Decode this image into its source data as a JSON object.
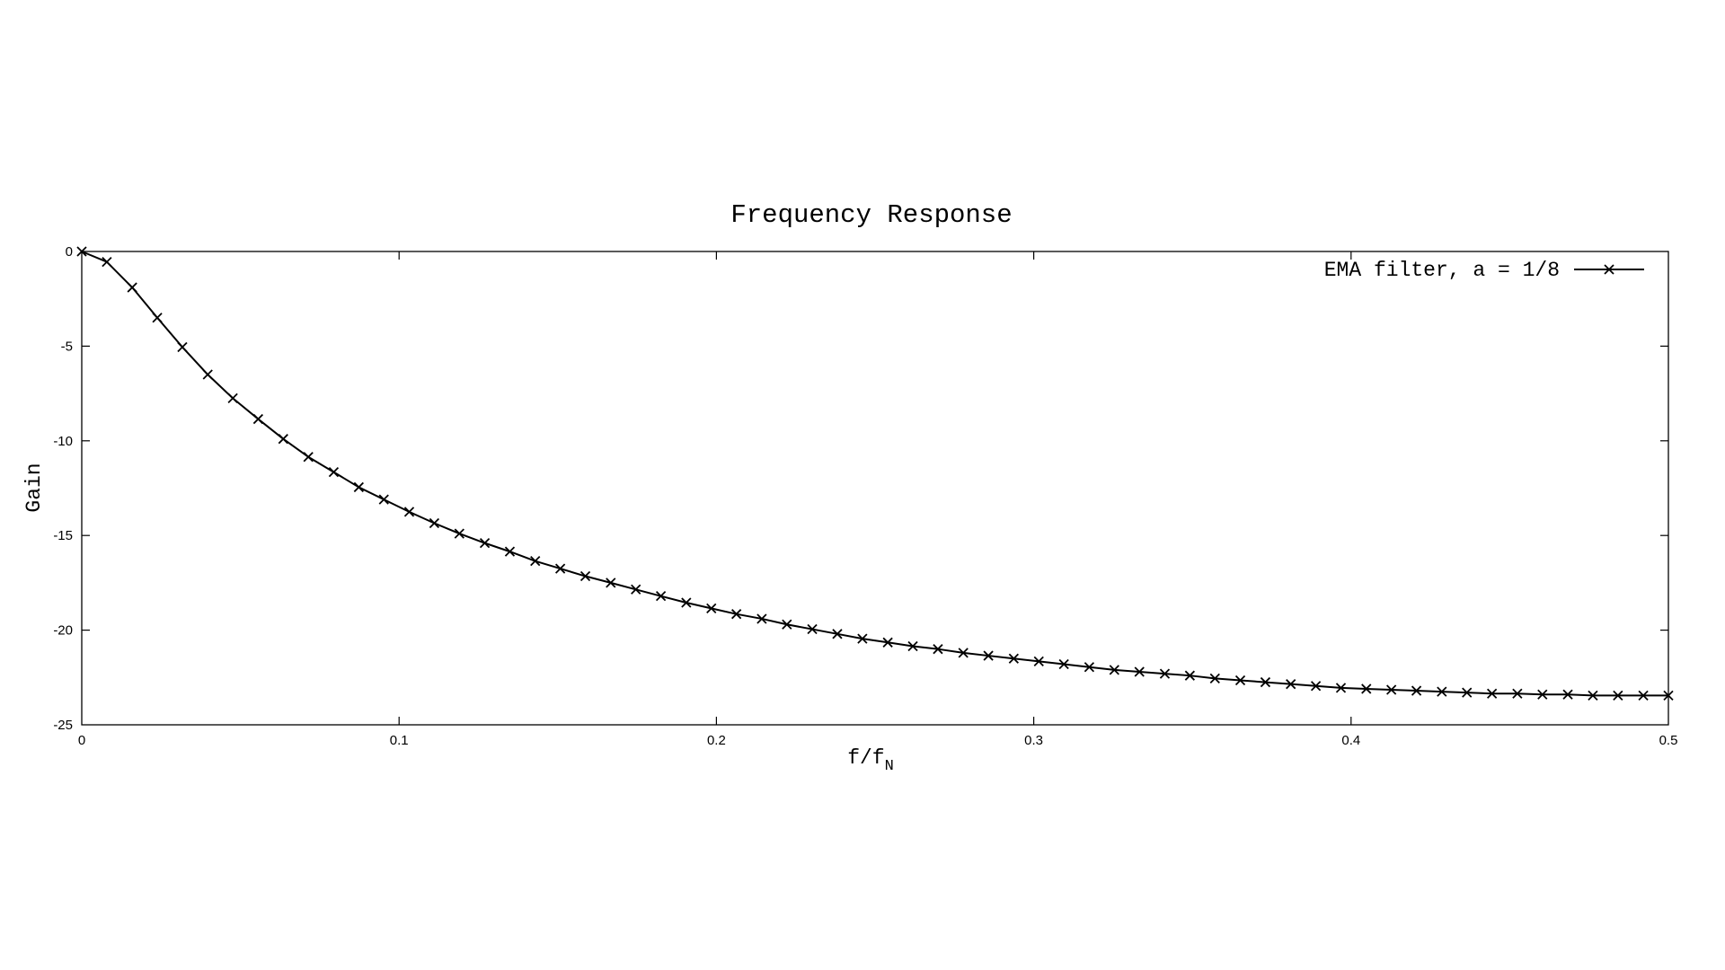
{
  "chart_data": {
    "type": "line",
    "title": "Frequency Response",
    "xlabel_main": "f/f",
    "xlabel_sub": "N",
    "ylabel": "Gain",
    "xlim": [
      0,
      0.5
    ],
    "ylim": [
      -25,
      0
    ],
    "xticks": [
      0,
      0.1,
      0.2,
      0.3,
      0.4,
      0.5
    ],
    "xtick_labels": [
      "0",
      "0.1",
      "0.2",
      "0.3",
      "0.4",
      "0.5"
    ],
    "yticks": [
      0,
      -5,
      -10,
      -15,
      -20,
      -25
    ],
    "ytick_labels": [
      "0",
      "-5",
      "-10",
      "-15",
      "-20",
      "-25"
    ],
    "grid": false,
    "legend_position": "top-right",
    "series": [
      {
        "name": "EMA filter, a = 1/8",
        "marker": "x",
        "color": "#000000",
        "x": [
          0,
          0.0079,
          0.0159,
          0.0238,
          0.0317,
          0.0397,
          0.0476,
          0.0556,
          0.0635,
          0.0714,
          0.0794,
          0.0873,
          0.0952,
          0.1032,
          0.1111,
          0.119,
          0.127,
          0.1349,
          0.1429,
          0.1508,
          0.1587,
          0.1667,
          0.1746,
          0.1825,
          0.1905,
          0.1984,
          0.2063,
          0.2143,
          0.2222,
          0.2302,
          0.2381,
          0.246,
          0.254,
          0.2619,
          0.2698,
          0.2778,
          0.2857,
          0.2937,
          0.3016,
          0.3095,
          0.3175,
          0.3254,
          0.3333,
          0.3413,
          0.3492,
          0.3571,
          0.3651,
          0.373,
          0.381,
          0.3889,
          0.3968,
          0.4048,
          0.4127,
          0.4206,
          0.4286,
          0.4365,
          0.4444,
          0.4524,
          0.4603,
          0.4683,
          0.4762,
          0.4841,
          0.4921,
          0.5
        ],
        "y": [
          0,
          -0.55,
          -1.9,
          -3.5,
          -5.05,
          -6.5,
          -7.75,
          -8.85,
          -9.9,
          -10.85,
          -11.65,
          -12.45,
          -13.1,
          -13.75,
          -14.35,
          -14.9,
          -15.4,
          -15.85,
          -16.35,
          -16.75,
          -17.15,
          -17.5,
          -17.85,
          -18.2,
          -18.55,
          -18.85,
          -19.15,
          -19.4,
          -19.7,
          -19.95,
          -20.2,
          -20.45,
          -20.65,
          -20.85,
          -21.0,
          -21.2,
          -21.35,
          -21.5,
          -21.65,
          -21.8,
          -21.95,
          -22.1,
          -22.2,
          -22.3,
          -22.4,
          -22.55,
          -22.65,
          -22.75,
          -22.85,
          -22.95,
          -23.05,
          -23.1,
          -23.15,
          -23.2,
          -23.25,
          -23.3,
          -23.35,
          -23.35,
          -23.4,
          -23.4,
          -23.45,
          -23.45,
          -23.45,
          -23.45
        ]
      }
    ]
  }
}
